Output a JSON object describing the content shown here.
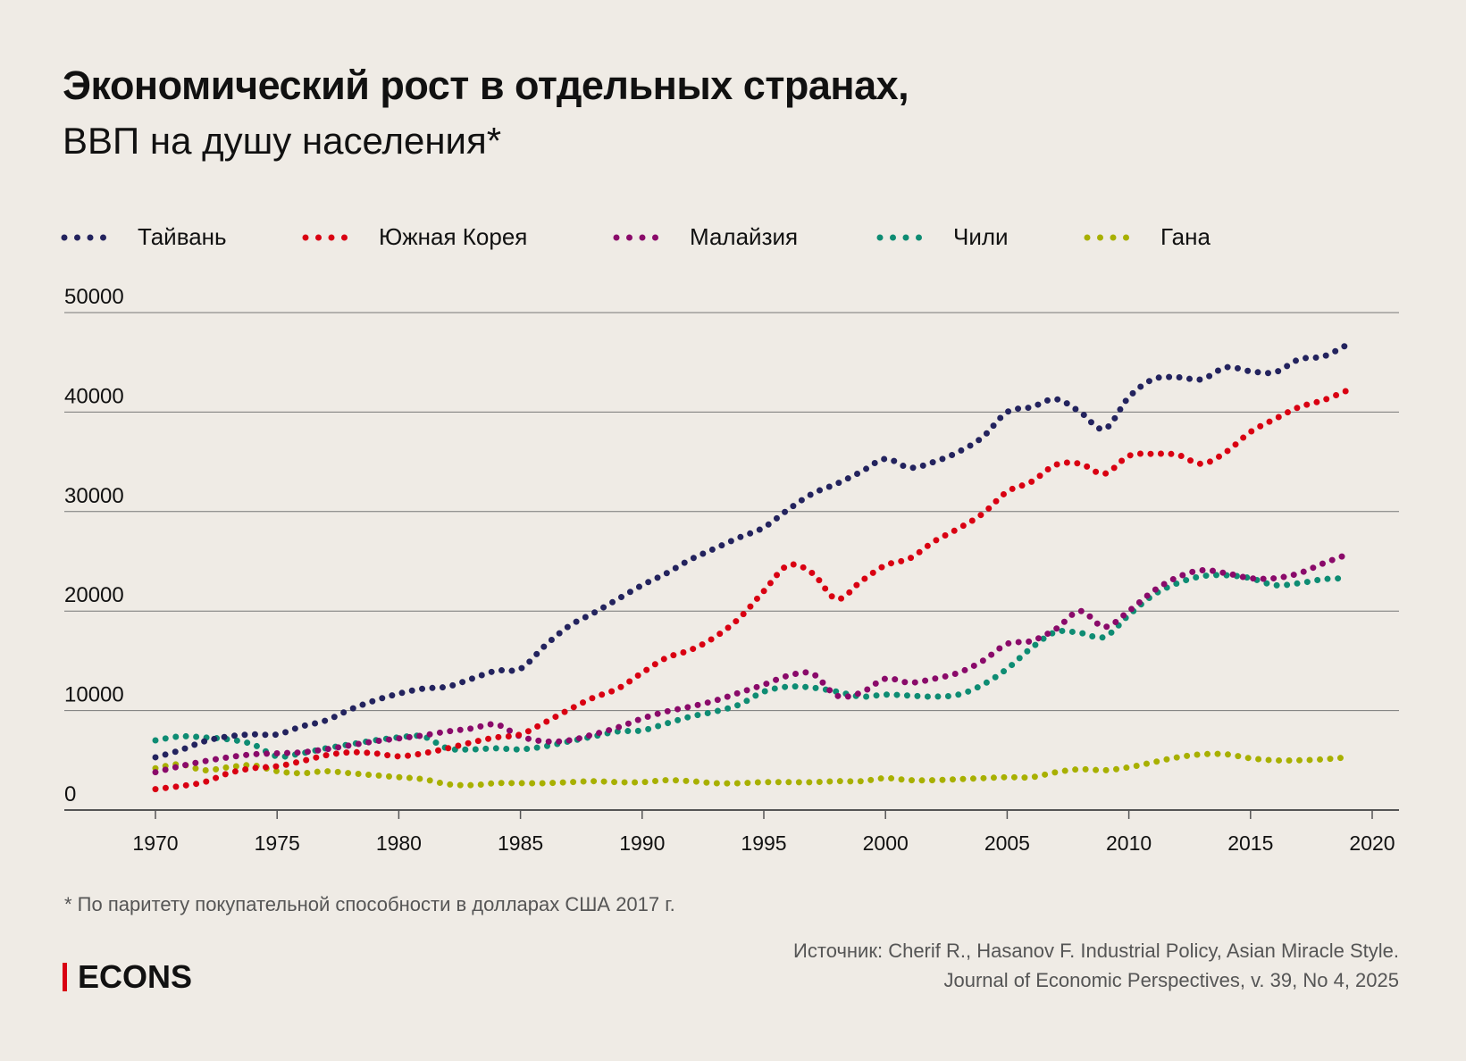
{
  "title": "Экономический рост в отдельных странах,",
  "subtitle": "ВВП на душу населения*",
  "footnote": "* По паритету покупательной способности в долларах США 2017 г.",
  "source_line1": "Источник: Cherif R., Hasanov F. Industrial Policy, Asian Miracle Style.",
  "source_line2": "Journal of Economic Perspectives, v. 39, No 4, 2025",
  "logo": "ECONS",
  "chart_data": {
    "type": "line",
    "style": "dotted",
    "ylim": [
      0,
      50000
    ],
    "xlim": [
      1966,
      2021
    ],
    "yticks": [
      0,
      10000,
      20000,
      30000,
      40000,
      50000
    ],
    "xticks": [
      1970,
      1975,
      1980,
      1985,
      1990,
      1995,
      2000,
      2005,
      2010,
      2015,
      2020
    ],
    "grid": "horizontal",
    "legend": "top",
    "x": [
      1970,
      1971,
      1972,
      1973,
      1974,
      1975,
      1976,
      1977,
      1978,
      1979,
      1980,
      1981,
      1982,
      1983,
      1984,
      1985,
      1986,
      1987,
      1988,
      1989,
      1990,
      1991,
      1992,
      1993,
      1994,
      1995,
      1996,
      1997,
      1998,
      1999,
      2000,
      2001,
      2002,
      2003,
      2004,
      2005,
      2006,
      2007,
      2008,
      2009,
      2010,
      2011,
      2012,
      2013,
      2014,
      2015,
      2016,
      2017,
      2018,
      2019
    ],
    "series": [
      {
        "name": "Тайвань",
        "color": "#23235e",
        "values": [
          5300,
          6000,
          6900,
          7400,
          7600,
          7600,
          8400,
          9000,
          10100,
          11000,
          11700,
          12200,
          12400,
          13200,
          14000,
          14200,
          16500,
          18500,
          19800,
          21200,
          22600,
          23800,
          25200,
          26300,
          27400,
          28400,
          30200,
          31800,
          32800,
          34000,
          35300,
          34400,
          35000,
          36000,
          37500,
          40000,
          40500,
          41300,
          40000,
          38300,
          41500,
          43300,
          43500,
          43300,
          44500,
          44100,
          44000,
          45300,
          45600,
          46800
        ]
      },
      {
        "name": "Южная Корея",
        "color": "#d90012",
        "values": [
          2100,
          2400,
          2800,
          3700,
          4200,
          4400,
          4900,
          5500,
          5800,
          5700,
          5400,
          5700,
          6200,
          6800,
          7300,
          7600,
          8800,
          10100,
          11300,
          12200,
          13800,
          15300,
          16100,
          17400,
          19300,
          22000,
          24600,
          23800,
          21200,
          23000,
          24600,
          25300,
          27000,
          28300,
          29800,
          32000,
          33000,
          34700,
          34800,
          33800,
          35600,
          35800,
          35700,
          34800,
          36000,
          38000,
          39300,
          40500,
          41200,
          42200
        ]
      },
      {
        "name": "Малайзия",
        "color": "#8a0a6a",
        "values": [
          3800,
          4400,
          4900,
          5300,
          5600,
          5700,
          5800,
          6100,
          6500,
          6900,
          7200,
          7500,
          7900,
          8200,
          8600,
          7400,
          6900,
          7000,
          7600,
          8300,
          9200,
          9900,
          10400,
          11000,
          11800,
          12600,
          13500,
          13700,
          11500,
          11800,
          13200,
          12800,
          13200,
          13800,
          15000,
          16700,
          17000,
          18200,
          20000,
          18400,
          20000,
          22000,
          23400,
          24100,
          23800,
          23300,
          23300,
          23800,
          24800,
          25700
        ]
      },
      {
        "name": "Чили",
        "color": "#0e8c73",
        "values": [
          7000,
          7400,
          7300,
          7100,
          6600,
          5400,
          5700,
          6200,
          6600,
          7000,
          7300,
          7400,
          6200,
          6100,
          6200,
          6100,
          6400,
          6900,
          7400,
          7900,
          8000,
          8700,
          9400,
          9900,
          10600,
          11900,
          12400,
          12300,
          11900,
          11400,
          11600,
          11500,
          11400,
          11600,
          12600,
          14200,
          16300,
          17900,
          17800,
          17400,
          19600,
          21600,
          22800,
          23500,
          23600,
          23300,
          22600,
          22800,
          23200,
          23300
        ]
      },
      {
        "name": "Гана",
        "color": "#a8b000",
        "values": [
          4200,
          4600,
          4000,
          4300,
          4500,
          3900,
          3700,
          3900,
          3700,
          3500,
          3300,
          3100,
          2600,
          2500,
          2700,
          2700,
          2700,
          2800,
          2900,
          2800,
          2800,
          3000,
          2900,
          2700,
          2700,
          2800,
          2800,
          2800,
          2900,
          2900,
          3200,
          3000,
          3000,
          3100,
          3200,
          3300,
          3300,
          3800,
          4100,
          4000,
          4300,
          4800,
          5300,
          5600,
          5600,
          5200,
          5000,
          5000,
          5100,
          5300
        ]
      }
    ]
  }
}
